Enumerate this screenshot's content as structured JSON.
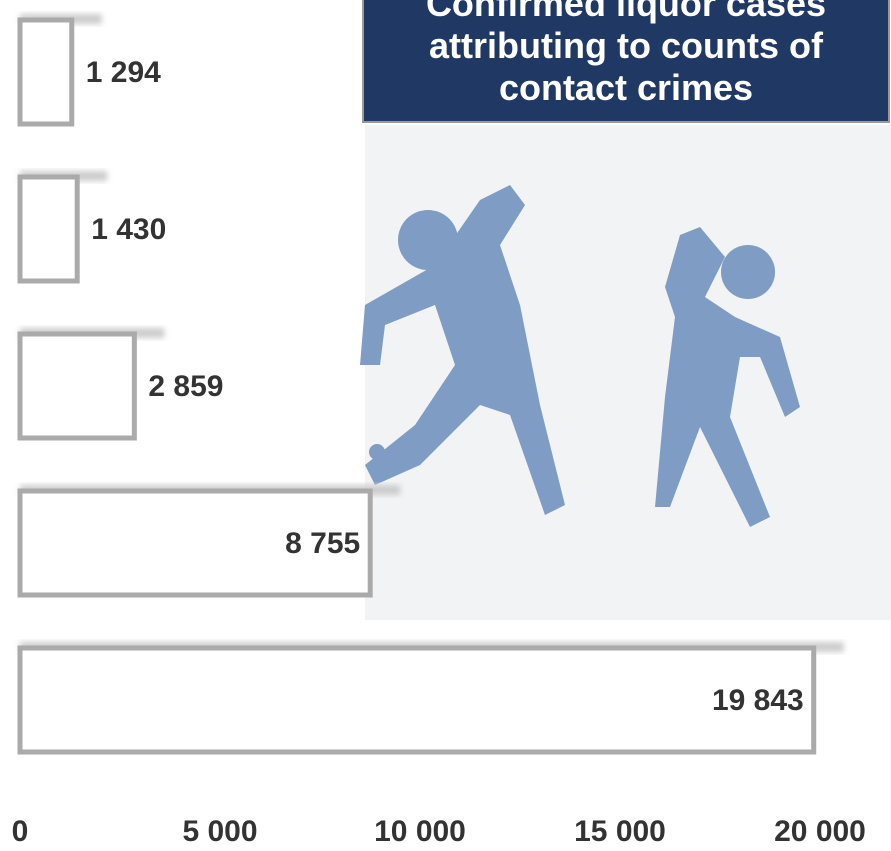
{
  "chart_data": {
    "type": "bar",
    "orientation": "horizontal",
    "title": "Confirmed liquor cases attributing to counts of contact crimes",
    "values": [
      1294,
      1430,
      2859,
      8755,
      19843
    ],
    "value_labels": [
      "1 294",
      "1 430",
      "2 859",
      "8 755",
      "19 843"
    ],
    "color": "#ffffff",
    "xlim": [
      0,
      20000
    ],
    "xticks": [
      0,
      {
        "value": 5000,
        "label": "5 000"
      },
      {
        "value": 10000,
        "label": "10 000"
      },
      {
        "value": 15000,
        "label": "15 000"
      },
      {
        "value": 20000,
        "label": "20 000"
      }
    ]
  }
}
